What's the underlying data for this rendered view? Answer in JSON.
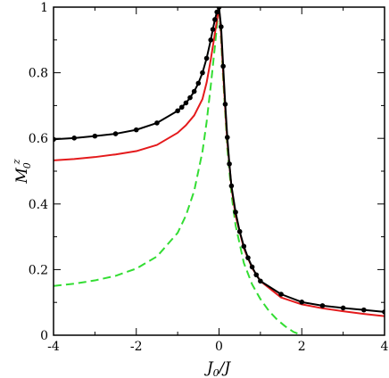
{
  "chart_data": {
    "type": "line",
    "xlabel": {
      "main": "J",
      "sub": "0",
      "rest": "/J"
    },
    "ylabel": {
      "main": "M",
      "sub": "0",
      "sup": "z"
    },
    "xlim": [
      -4,
      4
    ],
    "ylim": [
      0,
      1
    ],
    "xticks": [
      "-4",
      "-2",
      "0",
      "2",
      "4"
    ],
    "yticks": [
      "0",
      "0.2",
      "0.4",
      "0.6",
      "0.8",
      "1"
    ],
    "grid": false,
    "colors": {
      "black": "#000000",
      "red": "#e41a1c",
      "green": "#33dd33"
    },
    "series": [
      {
        "style": "solid-markers",
        "color": "#000000",
        "x": [
          -4,
          -3.5,
          -3,
          -2.5,
          -2,
          -1.5,
          -1,
          -0.9,
          -0.8,
          -0.7,
          -0.6,
          -0.5,
          -0.4,
          -0.3,
          -0.2,
          -0.15,
          -0.1,
          -0.05,
          0,
          0.05,
          0.1,
          0.15,
          0.2,
          0.25,
          0.3,
          0.4,
          0.5,
          0.6,
          0.7,
          0.8,
          0.9,
          1,
          1.5,
          2,
          2.5,
          3,
          3.5,
          4
        ],
        "y": [
          0.597,
          0.601,
          0.607,
          0.614,
          0.626,
          0.647,
          0.684,
          0.695,
          0.708,
          0.724,
          0.743,
          0.768,
          0.8,
          0.844,
          0.9,
          0.932,
          0.962,
          0.985,
          1.0,
          0.94,
          0.82,
          0.704,
          0.603,
          0.522,
          0.455,
          0.375,
          0.316,
          0.271,
          0.236,
          0.208,
          0.184,
          0.165,
          0.125,
          0.101,
          0.09,
          0.083,
          0.077,
          0.071
        ]
      },
      {
        "style": "solid",
        "color": "#e41a1c",
        "x": [
          -4,
          -3.5,
          -3,
          -2.5,
          -2,
          -1.5,
          -1,
          -0.8,
          -0.6,
          -0.4,
          -0.3,
          -0.2,
          -0.1,
          -0.05,
          0,
          0.05,
          0.1,
          0.15,
          0.2,
          0.3,
          0.4,
          0.6,
          0.8,
          1,
          1.5,
          2,
          2.5,
          3,
          3.5,
          4
        ],
        "y": [
          0.533,
          0.537,
          0.543,
          0.551,
          0.561,
          0.58,
          0.617,
          0.64,
          0.67,
          0.72,
          0.77,
          0.84,
          0.92,
          0.96,
          1.0,
          0.92,
          0.8,
          0.69,
          0.59,
          0.45,
          0.365,
          0.265,
          0.205,
          0.165,
          0.115,
          0.094,
          0.082,
          0.073,
          0.065,
          0.058
        ]
      },
      {
        "style": "dashed",
        "color": "#33dd33",
        "x": [
          -4,
          -3.5,
          -3,
          -2.5,
          -2,
          -1.5,
          -1,
          -0.8,
          -0.6,
          -0.4,
          -0.3,
          -0.2,
          -0.1,
          -0.05,
          0,
          0.05,
          0.1,
          0.2,
          0.3,
          0.4,
          0.6,
          0.8,
          1,
          1.2,
          1.4,
          1.6,
          1.8,
          2
        ],
        "y": [
          0.15,
          0.157,
          0.167,
          0.181,
          0.203,
          0.24,
          0.312,
          0.365,
          0.44,
          0.56,
          0.65,
          0.76,
          0.88,
          0.945,
          1.0,
          0.9,
          0.78,
          0.57,
          0.43,
          0.335,
          0.22,
          0.155,
          0.11,
          0.075,
          0.048,
          0.027,
          0.01,
          0.0
        ]
      }
    ]
  }
}
